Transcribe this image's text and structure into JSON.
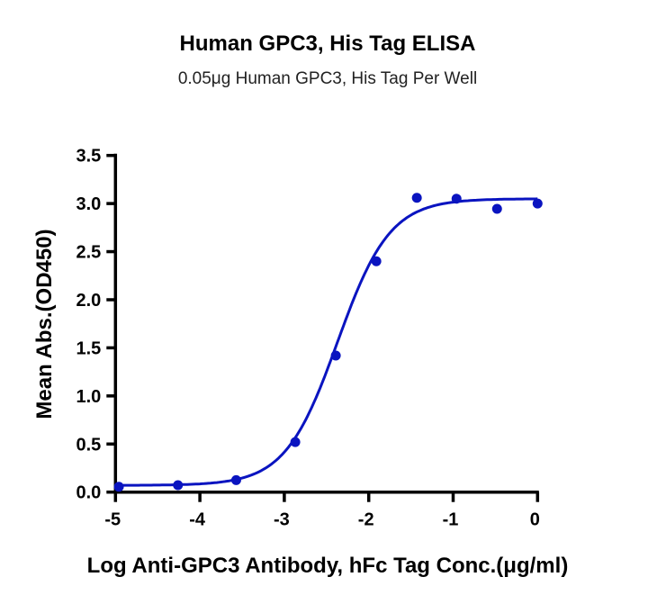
{
  "chart_data": {
    "type": "scatter",
    "title": "Human GPC3, His Tag ELISA",
    "subtitle": "0.05μg Human GPC3, His Tag Per Well",
    "xlabel": "Log Anti-GPC3 Antibody, hFc Tag Conc.(μg/ml)",
    "ylabel": "Mean Abs.(OD450)",
    "xlim": [
      -5,
      0
    ],
    "ylim": [
      0,
      3.5
    ],
    "xticks": [
      "-5",
      "-4",
      "-3",
      "-2",
      "-1",
      "0"
    ],
    "yticks": [
      "0.0",
      "0.5",
      "1.0",
      "1.5",
      "2.0",
      "2.5",
      "3.0",
      "3.5"
    ],
    "grid": false,
    "color": "#0a14c0",
    "points": {
      "x": [
        -4.96,
        -4.26,
        -3.57,
        -2.87,
        -2.39,
        -1.91,
        -1.43,
        -0.96,
        -0.48,
        0
      ],
      "y": [
        0.056,
        0.072,
        0.125,
        0.52,
        1.42,
        2.4,
        3.06,
        3.05,
        2.945,
        3.0
      ]
    },
    "fit_curve": {
      "model": "4PL",
      "bottom": 0.07,
      "top": 3.05,
      "logEC50": -2.37,
      "hill": 1.4
    }
  }
}
